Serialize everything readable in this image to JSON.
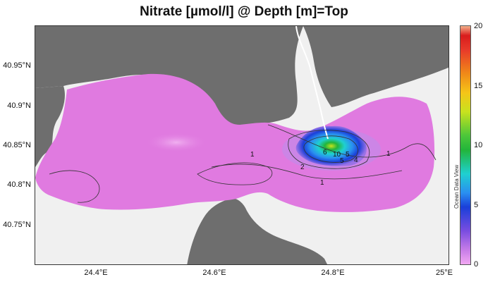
{
  "title": "Nitrate [µmol/l] @ Depth [m]=Top",
  "map": {
    "y_ticks": [
      "40.95°N",
      "40.9°N",
      "40.85°N",
      "40.8°N",
      "40.75°N"
    ],
    "x_ticks": [
      "24.4°E",
      "24.6°E",
      "24.8°E",
      "25°E"
    ],
    "contour_labels": [
      "1",
      "2",
      "1",
      "6",
      "5",
      "10",
      "5",
      "4",
      "1"
    ],
    "colors": {
      "land": "#6e6e6e",
      "no_data": "#f0f0f0",
      "low": "#e07ae0",
      "mid_blue": "#1a3fd9",
      "high_green": "#22b53a"
    }
  },
  "colorbar": {
    "ticks": [
      "20",
      "15",
      "10",
      "5",
      "0"
    ],
    "brand": "Ocean Data View"
  }
}
